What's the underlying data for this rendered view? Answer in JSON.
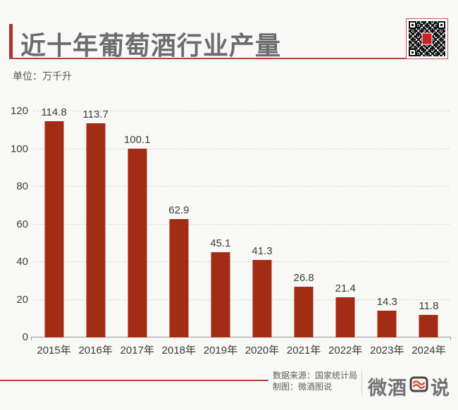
{
  "header": {
    "title": "近十年葡萄酒行业产量",
    "unit_label": "单位：万千升"
  },
  "qr": {
    "name": "qr-code",
    "center_color": "#cd2127"
  },
  "chart_data": {
    "type": "bar",
    "title": "近十年葡萄酒行业产量",
    "unit": "万千升",
    "categories": [
      "2015年",
      "2016年",
      "2017年",
      "2018年",
      "2019年",
      "2020年",
      "2021年",
      "2022年",
      "2023年",
      "2024年"
    ],
    "values": [
      114.8,
      113.7,
      100.1,
      62.9,
      45.1,
      41.3,
      26.8,
      21.4,
      14.3,
      11.8
    ],
    "ylim": [
      0,
      120
    ],
    "yticks": [
      0,
      20,
      40,
      60,
      80,
      100,
      120
    ],
    "grid": "horizontal-dashed",
    "legend": "none",
    "bar_color": "#a22c14",
    "label_color": "#3b3b3b"
  },
  "footer": {
    "source_line1": "数据来源：国家统计局",
    "source_line2": "制图：微酒图说",
    "logo_left": "微酒",
    "logo_right": "说",
    "logo_name": "微酒图说"
  },
  "colors": {
    "background": "#f8f8f6",
    "accent_red": "#b5403c",
    "bar_red": "#a22c14",
    "title_gray": "#6b6c6e"
  }
}
